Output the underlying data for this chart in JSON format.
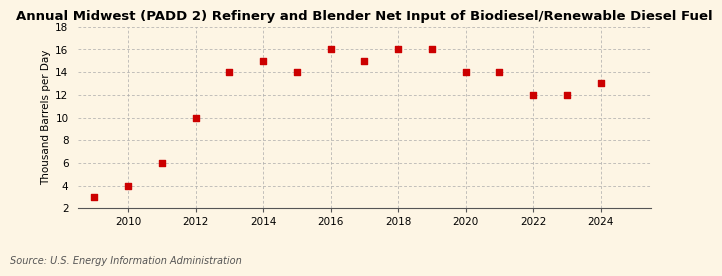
{
  "title": "Annual Midwest (PADD 2) Refinery and Blender Net Input of Biodiesel/Renewable Diesel Fuel",
  "ylabel": "Thousand Barrels per Day",
  "source": "Source: U.S. Energy Information Administration",
  "years": [
    2009,
    2010,
    2011,
    2012,
    2013,
    2014,
    2015,
    2016,
    2017,
    2018,
    2019,
    2020,
    2021,
    2022,
    2023,
    2024
  ],
  "values": [
    3.0,
    4.0,
    6.0,
    10.0,
    14.0,
    15.0,
    14.0,
    16.0,
    15.0,
    16.0,
    16.0,
    14.0,
    14.0,
    12.0,
    12.0,
    13.0
  ],
  "ylim": [
    2,
    18
  ],
  "yticks": [
    2,
    4,
    6,
    8,
    10,
    12,
    14,
    16,
    18
  ],
  "xlim": [
    2008.5,
    2025.5
  ],
  "xticks": [
    2010,
    2012,
    2014,
    2016,
    2018,
    2020,
    2022,
    2024
  ],
  "marker_color": "#cc0000",
  "marker": "s",
  "marker_size": 4,
  "bg_color": "#fdf5e4",
  "grid_color": "#aaaaaa",
  "title_fontsize": 9.5,
  "label_fontsize": 7.5,
  "tick_fontsize": 7.5,
  "source_fontsize": 7
}
